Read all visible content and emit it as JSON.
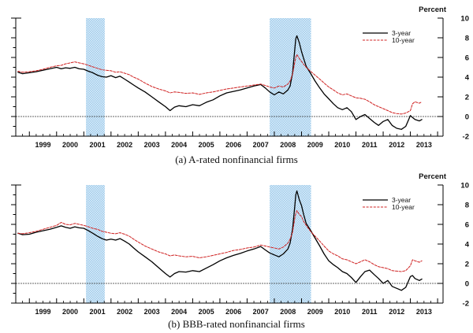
{
  "figure": {
    "background": "#ffffff",
    "text_color": "#111111"
  },
  "chart_data": [
    {
      "type": "line",
      "caption": "(a) A-rated nonfinancial firms",
      "ylabel": "Percent",
      "ylim": [
        -2,
        10
      ],
      "yticks": [
        -2,
        0,
        2,
        4,
        6,
        8,
        10
      ],
      "xlim": [
        1998.5,
        2014.2
      ],
      "xtick_labels": [
        "1999",
        "2000",
        "2001",
        "2002",
        "2003",
        "2004",
        "2005",
        "2006",
        "2007",
        "2008",
        "2009",
        "2010",
        "2011",
        "2012",
        "2013"
      ],
      "zero_line": 0,
      "grid": false,
      "legend_position": "top-right",
      "recession_bands": [
        [
          2001.08,
          2001.77
        ],
        [
          2007.83,
          2009.35
        ]
      ],
      "recession_band_colors": [
        "#9fcbe9",
        "#ddeefb"
      ],
      "x": [
        1998.58,
        1998.75,
        1999.0,
        1999.25,
        1999.5,
        1999.75,
        2000.0,
        2000.17,
        2000.33,
        2000.5,
        2000.67,
        2000.83,
        2001.0,
        2001.17,
        2001.33,
        2001.5,
        2001.67,
        2001.83,
        2002.0,
        2002.17,
        2002.33,
        2002.5,
        2002.67,
        2002.83,
        2003.0,
        2003.25,
        2003.5,
        2003.75,
        2004.0,
        2004.17,
        2004.33,
        2004.5,
        2004.75,
        2005.0,
        2005.25,
        2005.5,
        2005.75,
        2006.0,
        2006.25,
        2006.5,
        2006.75,
        2007.0,
        2007.25,
        2007.5,
        2007.67,
        2007.83,
        2008.0,
        2008.17,
        2008.33,
        2008.5,
        2008.58,
        2008.67,
        2008.75,
        2008.79,
        2008.83,
        2008.92,
        2009.0,
        2009.08,
        2009.17,
        2009.33,
        2009.5,
        2009.67,
        2009.83,
        2010.0,
        2010.17,
        2010.33,
        2010.5,
        2010.67,
        2010.83,
        2011.0,
        2011.17,
        2011.33,
        2011.5,
        2011.67,
        2011.83,
        2012.0,
        2012.17,
        2012.33,
        2012.5,
        2012.67,
        2012.83,
        2013.0,
        2013.08,
        2013.17,
        2013.33,
        2013.42
      ],
      "series": [
        {
          "name": "3-year",
          "color": "#000000",
          "dash": "solid",
          "width": 1.3,
          "values": [
            4.5,
            4.35,
            4.45,
            4.55,
            4.7,
            4.85,
            5.0,
            4.85,
            4.95,
            4.9,
            5.0,
            4.85,
            4.8,
            4.6,
            4.45,
            4.2,
            4.05,
            4.0,
            4.15,
            3.95,
            4.1,
            3.8,
            3.5,
            3.2,
            2.9,
            2.5,
            2.0,
            1.5,
            1.0,
            0.6,
            0.95,
            1.1,
            1.0,
            1.2,
            1.1,
            1.45,
            1.7,
            2.1,
            2.4,
            2.55,
            2.7,
            2.9,
            3.1,
            3.25,
            2.9,
            2.5,
            2.2,
            2.5,
            2.3,
            2.7,
            3.1,
            4.4,
            6.8,
            7.9,
            8.2,
            7.5,
            6.6,
            5.9,
            5.1,
            4.4,
            3.6,
            2.9,
            2.3,
            1.8,
            1.3,
            0.9,
            0.7,
            0.9,
            0.5,
            -0.3,
            0.0,
            0.2,
            -0.2,
            -0.6,
            -0.9,
            -0.5,
            -0.3,
            -0.9,
            -1.2,
            -1.3,
            -1.0,
            0.1,
            -0.1,
            -0.3,
            -0.45,
            -0.3
          ]
        },
        {
          "name": "10-year",
          "color": "#cf2020",
          "dash": "dash",
          "width": 1.0,
          "values": [
            4.6,
            4.5,
            4.55,
            4.65,
            4.8,
            5.0,
            5.15,
            5.2,
            5.35,
            5.45,
            5.55,
            5.45,
            5.35,
            5.2,
            5.05,
            4.9,
            4.75,
            4.7,
            4.65,
            4.5,
            4.55,
            4.4,
            4.25,
            4.0,
            3.8,
            3.4,
            3.05,
            2.8,
            2.6,
            2.4,
            2.5,
            2.45,
            2.35,
            2.4,
            2.25,
            2.4,
            2.5,
            2.65,
            2.8,
            2.9,
            3.0,
            3.1,
            3.2,
            3.3,
            3.15,
            3.0,
            2.9,
            3.1,
            3.0,
            3.3,
            3.6,
            4.3,
            5.5,
            6.0,
            6.3,
            5.9,
            5.6,
            5.3,
            5.0,
            4.6,
            4.2,
            3.8,
            3.4,
            3.0,
            2.7,
            2.4,
            2.2,
            2.3,
            2.1,
            1.9,
            1.85,
            1.75,
            1.5,
            1.2,
            1.0,
            0.8,
            0.6,
            0.4,
            0.3,
            0.25,
            0.35,
            0.6,
            1.3,
            1.5,
            1.35,
            1.5
          ]
        }
      ]
    },
    {
      "type": "line",
      "caption": "(b) BBB-rated nonfinancial firms",
      "ylabel": "Percent",
      "ylim": [
        -2,
        10
      ],
      "yticks": [
        -2,
        0,
        2,
        4,
        6,
        8,
        10
      ],
      "xlim": [
        1998.5,
        2014.2
      ],
      "xtick_labels": [
        "1999",
        "2000",
        "2001",
        "2002",
        "2003",
        "2004",
        "2005",
        "2006",
        "2007",
        "2008",
        "2009",
        "2010",
        "2011",
        "2012",
        "2013"
      ],
      "zero_line": 0,
      "grid": false,
      "legend_position": "top-right",
      "recession_bands": [
        [
          2001.08,
          2001.77
        ],
        [
          2007.83,
          2009.35
        ]
      ],
      "recession_band_colors": [
        "#9fcbe9",
        "#ddeefb"
      ],
      "x": [
        1998.58,
        1998.75,
        1999.0,
        1999.25,
        1999.5,
        1999.75,
        2000.0,
        2000.17,
        2000.33,
        2000.5,
        2000.67,
        2000.83,
        2001.0,
        2001.17,
        2001.33,
        2001.5,
        2001.67,
        2001.83,
        2002.0,
        2002.17,
        2002.33,
        2002.5,
        2002.67,
        2002.83,
        2003.0,
        2003.25,
        2003.5,
        2003.75,
        2004.0,
        2004.17,
        2004.33,
        2004.5,
        2004.75,
        2005.0,
        2005.25,
        2005.5,
        2005.75,
        2006.0,
        2006.25,
        2006.5,
        2006.75,
        2007.0,
        2007.25,
        2007.5,
        2007.67,
        2007.83,
        2008.0,
        2008.17,
        2008.33,
        2008.5,
        2008.58,
        2008.67,
        2008.75,
        2008.79,
        2008.83,
        2008.92,
        2009.0,
        2009.08,
        2009.17,
        2009.33,
        2009.5,
        2009.67,
        2009.83,
        2010.0,
        2010.17,
        2010.33,
        2010.5,
        2010.67,
        2010.83,
        2011.0,
        2011.17,
        2011.33,
        2011.5,
        2011.67,
        2011.83,
        2012.0,
        2012.17,
        2012.33,
        2012.5,
        2012.67,
        2012.83,
        2013.0,
        2013.08,
        2013.17,
        2013.33,
        2013.42
      ],
      "series": [
        {
          "name": "3-year",
          "color": "#000000",
          "dash": "solid",
          "width": 1.3,
          "values": [
            5.1,
            4.95,
            5.0,
            5.2,
            5.35,
            5.5,
            5.7,
            5.85,
            5.7,
            5.6,
            5.75,
            5.65,
            5.6,
            5.35,
            5.1,
            4.8,
            4.55,
            4.4,
            4.5,
            4.4,
            4.55,
            4.3,
            4.0,
            3.6,
            3.2,
            2.7,
            2.2,
            1.6,
            1.0,
            0.65,
            1.0,
            1.2,
            1.15,
            1.3,
            1.2,
            1.55,
            1.9,
            2.3,
            2.6,
            2.85,
            3.05,
            3.3,
            3.5,
            3.75,
            3.4,
            3.1,
            2.9,
            2.7,
            3.0,
            3.5,
            4.1,
            5.5,
            7.8,
            9.0,
            9.4,
            8.5,
            7.9,
            7.0,
            6.1,
            5.4,
            4.6,
            3.8,
            3.0,
            2.3,
            1.9,
            1.6,
            1.2,
            1.0,
            0.6,
            0.1,
            0.7,
            1.2,
            1.35,
            0.9,
            0.5,
            0.0,
            0.3,
            -0.3,
            -0.5,
            -0.7,
            -0.4,
            0.7,
            0.8,
            0.5,
            0.3,
            0.45
          ]
        },
        {
          "name": "10-year",
          "color": "#cf2020",
          "dash": "dash",
          "width": 1.0,
          "values": [
            5.1,
            5.05,
            5.15,
            5.3,
            5.5,
            5.7,
            5.9,
            6.2,
            6.0,
            5.95,
            6.1,
            6.0,
            5.9,
            5.75,
            5.6,
            5.5,
            5.3,
            5.2,
            5.1,
            5.05,
            5.15,
            5.0,
            4.8,
            4.5,
            4.2,
            3.8,
            3.5,
            3.2,
            3.0,
            2.8,
            2.9,
            2.8,
            2.7,
            2.75,
            2.6,
            2.7,
            2.85,
            3.0,
            3.15,
            3.35,
            3.45,
            3.6,
            3.7,
            3.9,
            3.8,
            3.7,
            3.6,
            3.5,
            3.7,
            4.1,
            4.5,
            5.2,
            6.6,
            7.1,
            7.4,
            7.0,
            6.8,
            6.3,
            5.9,
            5.3,
            4.8,
            4.3,
            3.8,
            3.3,
            3.0,
            2.8,
            2.5,
            2.4,
            2.2,
            2.0,
            2.2,
            2.4,
            2.2,
            1.9,
            1.7,
            1.6,
            1.5,
            1.3,
            1.25,
            1.2,
            1.3,
            1.8,
            2.4,
            2.3,
            2.15,
            2.3
          ]
        }
      ]
    }
  ]
}
